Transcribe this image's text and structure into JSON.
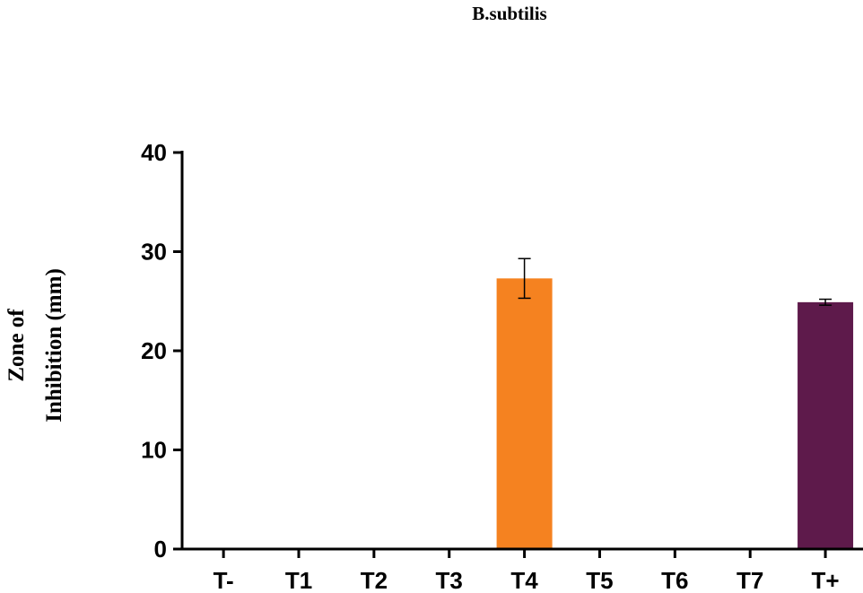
{
  "chart_data": {
    "type": "bar",
    "title": "B.subtilis",
    "ylabel_lines": [
      "Zone of",
      "Inhibition (mm)"
    ],
    "xlabel": "",
    "categories": [
      "T-",
      "T1",
      "T2",
      "T3",
      "T4",
      "T5",
      "T6",
      "T7",
      "T+"
    ],
    "values": [
      0,
      0,
      0,
      0,
      27.3,
      0,
      0,
      0,
      24.9
    ],
    "errors": [
      0,
      0,
      0,
      0,
      2.0,
      0,
      0,
      0,
      0.3
    ],
    "bar_colors": [
      "#f58220",
      "#f58220",
      "#f58220",
      "#f58220",
      "#f58220",
      "#f58220",
      "#f58220",
      "#f58220",
      "#5e1a4b"
    ],
    "yticks": [
      "0",
      "10",
      "20",
      "30",
      "40"
    ],
    "ylim": [
      0,
      40
    ],
    "grid": false,
    "legend": "none"
  }
}
